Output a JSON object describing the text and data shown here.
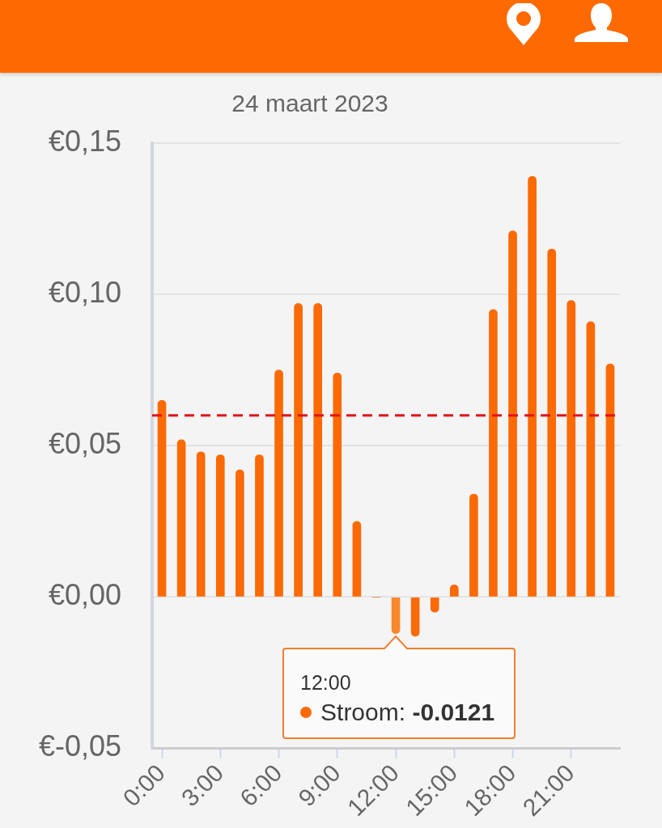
{
  "chart_data": {
    "type": "bar",
    "title": "24 maart 2023",
    "categories": [
      "0:00",
      null,
      null,
      "3:00",
      null,
      null,
      "6:00",
      null,
      null,
      "9:00",
      null,
      null,
      "12:00",
      null,
      null,
      "15:00",
      null,
      null,
      "18:00",
      null,
      null,
      "21:00",
      null,
      null
    ],
    "values": [
      0.065,
      0.052,
      0.048,
      0.047,
      0.042,
      0.047,
      0.075,
      0.097,
      0.097,
      0.074,
      0.025,
      0,
      -0.0121,
      -0.013,
      -0.005,
      0.004,
      0.034,
      0.095,
      0.121,
      0.139,
      0.115,
      0.098,
      0.091,
      0.077
    ],
    "colors": [
      "#fb6a05",
      "#fb6a05",
      "#fb6a05",
      "#fb6a05",
      "#fb6a05",
      "#fb6a05",
      "#fb6a05",
      "#fb6a05",
      "#fb6a05",
      "#fb6a05",
      "#fb6a05",
      "#fb6a05",
      "#f7892b",
      "#fb6a05",
      "#fb6a05",
      "#fb6a05",
      "#fb6a05",
      "#fb6a05",
      "#fb6a05",
      "#fb6a05",
      "#fb6a05",
      "#fb6a05",
      "#fb6a05",
      "#fb6a05"
    ],
    "ylim": [
      -0.05,
      0.15
    ],
    "yticks": [
      {
        "value": -0.05,
        "label": "€-0,05"
      },
      {
        "value": 0,
        "label": "€0,00"
      },
      {
        "value": 0.05,
        "label": "€0,05"
      },
      {
        "value": 0.1,
        "label": "€0,10"
      },
      {
        "value": 0.15,
        "label": "€0,15"
      }
    ],
    "grid": "y",
    "ref_lines": [
      {
        "axis": "y",
        "value": 0.06,
        "color": "#e3141b",
        "line_style": "dashed"
      }
    ],
    "annotations": [
      {
        "text": "12:00\nStroom: -0.0121",
        "x": "12:00",
        "y": -0.0121
      }
    ]
  }
}
